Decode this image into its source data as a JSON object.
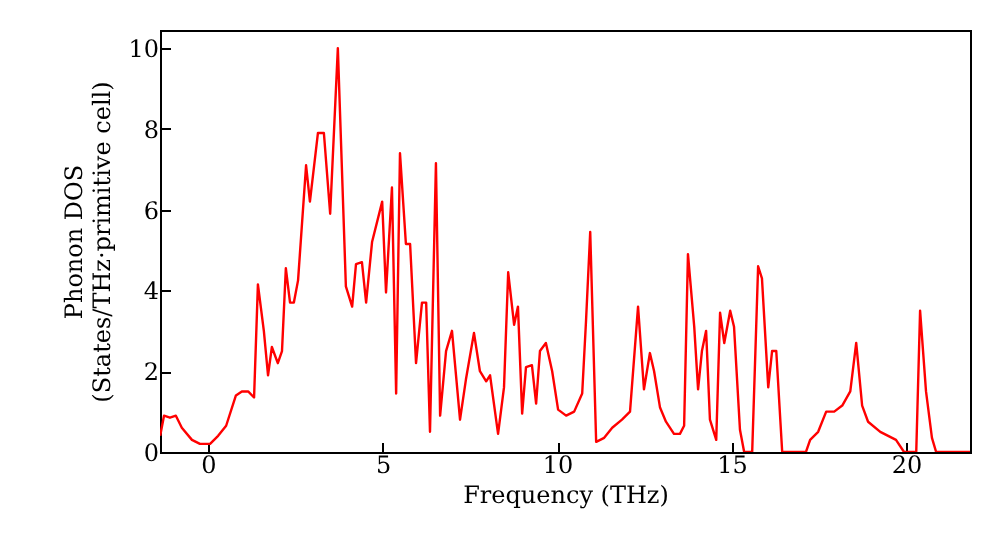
{
  "chart_data": {
    "type": "line",
    "xlabel": "Frequency (THz)",
    "ylabel": "Phonon DOS\n(States/THz·primitive cell)",
    "xlim": [
      -1.375,
      21.83
    ],
    "ylim": [
      0,
      10.45
    ],
    "xticks": [
      0,
      5,
      10,
      15,
      20
    ],
    "yticks": [
      0,
      2,
      4,
      6,
      8,
      10
    ],
    "grid": false,
    "marker": "none",
    "line_style": "solid",
    "x": [
      -1.37,
      -1.26,
      -1.09,
      -0.92,
      -0.75,
      -0.46,
      -0.23,
      0.06,
      0.29,
      0.52,
      0.8,
      0.97,
      1.15,
      1.32,
      1.43,
      1.6,
      1.72,
      1.83,
      2.0,
      2.12,
      2.23,
      2.35,
      2.46,
      2.58,
      2.81,
      2.92,
      3.15,
      3.32,
      3.5,
      3.72,
      3.95,
      4.13,
      4.24,
      4.41,
      4.53,
      4.7,
      4.99,
      5.1,
      5.27,
      5.39,
      5.5,
      5.67,
      5.79,
      5.96,
      6.13,
      6.25,
      6.36,
      6.53,
      6.65,
      6.82,
      6.99,
      7.22,
      7.39,
      7.62,
      7.79,
      7.97,
      8.08,
      8.31,
      8.48,
      8.6,
      8.77,
      8.88,
      9.0,
      9.11,
      9.28,
      9.4,
      9.51,
      9.68,
      9.86,
      10.03,
      10.26,
      10.49,
      10.72,
      10.83,
      10.95,
      11.12,
      11.35,
      11.58,
      11.86,
      12.09,
      12.32,
      12.49,
      12.66,
      12.78,
      12.95,
      13.12,
      13.35,
      13.52,
      13.64,
      13.75,
      13.93,
      14.04,
      14.15,
      14.27,
      14.38,
      14.56,
      14.67,
      14.79,
      14.96,
      15.07,
      15.24,
      15.36,
      15.59,
      15.76,
      15.87,
      16.05,
      16.16,
      16.28,
      16.45,
      17.13,
      17.25,
      17.48,
      17.71,
      17.94,
      18.17,
      18.4,
      18.57,
      18.74,
      18.91,
      19.26,
      19.71,
      19.94,
      20.29,
      20.4,
      20.57,
      20.74,
      20.86,
      21.83
    ],
    "series": [
      {
        "color": "#ff0000",
        "values": [
          0.4,
          0.9,
          0.85,
          0.9,
          0.6,
          0.3,
          0.2,
          0.2,
          0.4,
          0.65,
          1.4,
          1.5,
          1.5,
          1.35,
          4.15,
          3.0,
          1.9,
          2.6,
          2.2,
          2.5,
          4.55,
          3.7,
          3.7,
          4.25,
          7.1,
          6.2,
          7.9,
          7.9,
          5.9,
          10.0,
          4.1,
          3.6,
          4.65,
          4.7,
          3.7,
          5.2,
          6.2,
          3.95,
          6.55,
          1.45,
          7.4,
          5.15,
          5.15,
          2.2,
          3.7,
          3.7,
          0.5,
          7.15,
          0.9,
          2.5,
          3.0,
          0.8,
          1.8,
          2.95,
          2.0,
          1.75,
          1.9,
          0.45,
          1.6,
          4.45,
          3.15,
          3.6,
          0.95,
          2.1,
          2.15,
          1.2,
          2.5,
          2.7,
          2.0,
          1.05,
          0.9,
          1.0,
          1.45,
          3.25,
          5.45,
          0.25,
          0.35,
          0.6,
          0.8,
          1.0,
          3.6,
          1.55,
          2.45,
          2.0,
          1.1,
          0.75,
          0.45,
          0.45,
          0.65,
          4.9,
          3.1,
          1.55,
          2.5,
          3.0,
          0.8,
          0.3,
          3.45,
          2.7,
          3.5,
          3.1,
          0.55,
          0,
          0,
          4.6,
          4.3,
          1.6,
          2.5,
          2.5,
          0,
          0,
          0.3,
          0.5,
          1.0,
          1.0,
          1.15,
          1.5,
          2.7,
          1.15,
          0.75,
          0.5,
          0.3,
          0,
          0,
          3.5,
          1.5,
          0.35,
          0,
          0
        ]
      }
    ]
  }
}
